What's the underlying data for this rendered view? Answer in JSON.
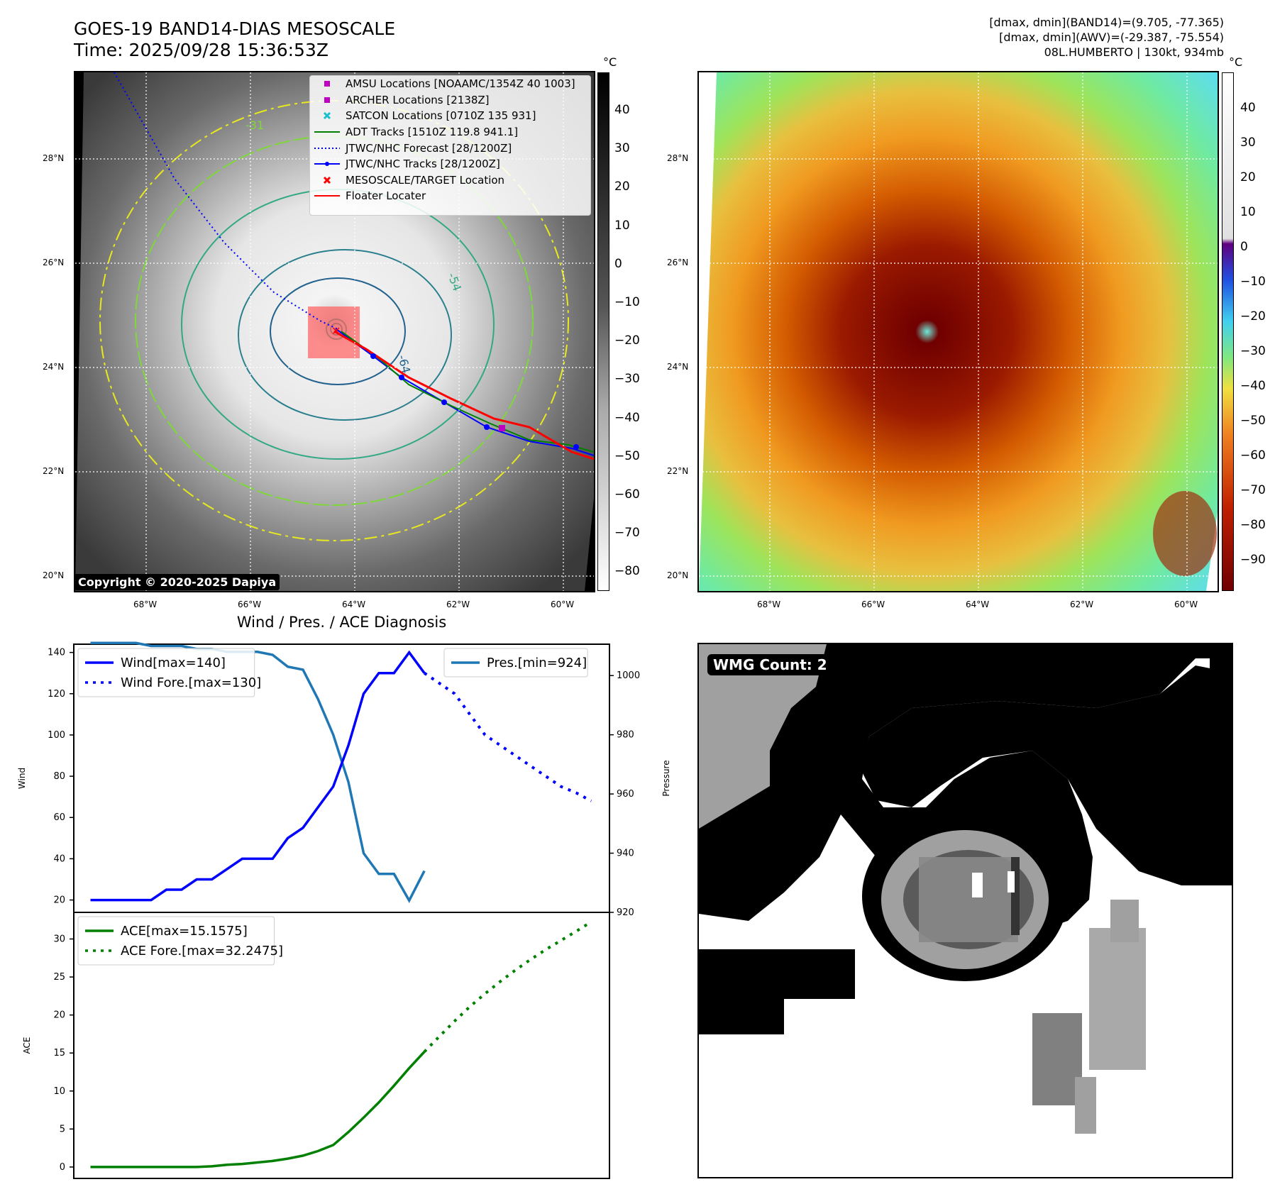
{
  "header": {
    "title_line1": "GOES-19 BAND14-DIAS MESOSCALE",
    "title_line2": "Time: 2025/09/28 15:36:53Z",
    "info_line1": "[dmax, dmin](BAND14)=(9.705, -77.365)",
    "info_line2": "[dmax, dmin](AWV)=(-29.387, -75.554)",
    "info_line3": "08L.HUMBERTO | 130kt, 934mb"
  },
  "map_axes": {
    "lat_labels": [
      "28°N",
      "26°N",
      "24°N",
      "22°N",
      "20°N"
    ],
    "lon_labels": [
      "68°W",
      "66°W",
      "64°W",
      "62°W",
      "60°W"
    ]
  },
  "ir_panel": {
    "colorbar_unit": "°C",
    "colorbar_ticks": [
      "40",
      "30",
      "20",
      "10",
      "0",
      "−10",
      "−20",
      "−30",
      "−40",
      "−50",
      "−60",
      "−70",
      "−80"
    ],
    "contour_labels": [
      "-64",
      "-31",
      "-54"
    ],
    "copyright": "Copyright © 2020-2025 Dapiya",
    "legend": [
      {
        "label": "AMSU Locations [NOAAMC/1354Z 40 1003]",
        "marker": "square",
        "color": "#c000c0"
      },
      {
        "label": "ARCHER Locations [2138Z]",
        "marker": "square",
        "color": "#c000c0"
      },
      {
        "label": "SATCON Locations [0710Z 135 931]",
        "marker": "x",
        "color": "#17becf"
      },
      {
        "label": "ADT Tracks [1510Z 119.8 941.1]",
        "marker": "line",
        "color": "#008000"
      },
      {
        "label": "JTWC/NHC Forecast [28/1200Z]",
        "marker": "dotted",
        "color": "#0000ff"
      },
      {
        "label": "JTWC/NHC Tracks [28/1200Z]",
        "marker": "line-dot",
        "color": "#0000ff"
      },
      {
        "label": "MESOSCALE/TARGET Location",
        "marker": "x",
        "color": "#ff0000"
      },
      {
        "label": "Floater Locater",
        "marker": "line",
        "color": "#ff0000"
      }
    ]
  },
  "wv_panel": {
    "colorbar_unit": "°C",
    "colorbar_ticks": [
      "40",
      "30",
      "20",
      "10",
      "0",
      "−10",
      "−20",
      "−30",
      "−40",
      "−50",
      "−60",
      "−70",
      "−80",
      "−90"
    ]
  },
  "wmg_panel": {
    "label": "WMG Count: 2"
  },
  "chart_data": [
    {
      "type": "line",
      "title": "Wind / Pres. / ACE Diagnosis",
      "ylabel": "Wind",
      "ylabel_right": "Pressure",
      "ylim": [
        14,
        144
      ],
      "ylim_right": [
        920,
        1010.6
      ],
      "yticks": [
        20,
        40,
        60,
        80,
        100,
        120,
        140
      ],
      "yticks_right": [
        920,
        940,
        960,
        980,
        1000
      ],
      "series": [
        {
          "name": "Wind[max=140]",
          "style": "solid",
          "color": "#0000ff",
          "axis": "left",
          "x": [
            0,
            1,
            2,
            3,
            4,
            5,
            6,
            7,
            8,
            9,
            10,
            11,
            12,
            13,
            14,
            15,
            16,
            17,
            18,
            19,
            20,
            21,
            22
          ],
          "values": [
            20,
            20,
            20,
            20,
            20,
            25,
            25,
            30,
            30,
            35,
            40,
            40,
            40,
            50,
            55,
            65,
            75,
            95,
            120,
            130,
            130,
            140,
            130
          ]
        },
        {
          "name": "Wind Fore.[max=130]",
          "style": "dotted",
          "color": "#0000ff",
          "axis": "left",
          "x": [
            22,
            23,
            24,
            25,
            26,
            27,
            28,
            29,
            30,
            31,
            32,
            33
          ],
          "values": [
            130,
            125,
            120,
            110,
            100,
            95,
            90,
            85,
            80,
            75,
            72,
            68
          ]
        },
        {
          "name": "Pres.[min=924]",
          "style": "solid",
          "color": "#1f77b4",
          "axis": "right",
          "x": [
            0,
            1,
            2,
            3,
            4,
            5,
            6,
            7,
            8,
            9,
            10,
            11,
            12,
            13,
            14,
            15,
            16,
            17,
            18,
            19,
            20,
            21,
            22
          ],
          "values": [
            1011,
            1011,
            1011,
            1011,
            1010,
            1010,
            1010,
            1009,
            1009,
            1008,
            1008,
            1008,
            1007,
            1003,
            1002,
            992,
            980,
            964,
            940,
            933,
            933,
            924,
            934
          ]
        }
      ]
    },
    {
      "type": "line",
      "ylabel": "ACE",
      "ylim": [
        -1.5,
        33.5
      ],
      "yticks": [
        0,
        5,
        10,
        15,
        20,
        25,
        30
      ],
      "series": [
        {
          "name": "ACE[max=15.1575]",
          "style": "solid",
          "color": "#008000",
          "x": [
            0,
            1,
            2,
            3,
            4,
            5,
            6,
            7,
            8,
            9,
            10,
            11,
            12,
            13,
            14,
            15,
            16,
            17,
            18,
            19,
            20,
            21,
            22
          ],
          "values": [
            0,
            0,
            0,
            0,
            0,
            0,
            0,
            0,
            0.1,
            0.3,
            0.4,
            0.6,
            0.8,
            1.1,
            1.5,
            2.1,
            2.9,
            4.6,
            6.5,
            8.5,
            10.7,
            13.0,
            15.1575
          ]
        },
        {
          "name": "ACE Fore.[max=32.2475]",
          "style": "dotted",
          "color": "#008000",
          "x": [
            22,
            23,
            24,
            25,
            26,
            27,
            28,
            29,
            30,
            31,
            32,
            33
          ],
          "values": [
            15.1575,
            17.2,
            19.2,
            21.1,
            22.8,
            24.4,
            25.9,
            27.3,
            28.6,
            29.8,
            31.0,
            32.2475
          ]
        }
      ]
    }
  ]
}
